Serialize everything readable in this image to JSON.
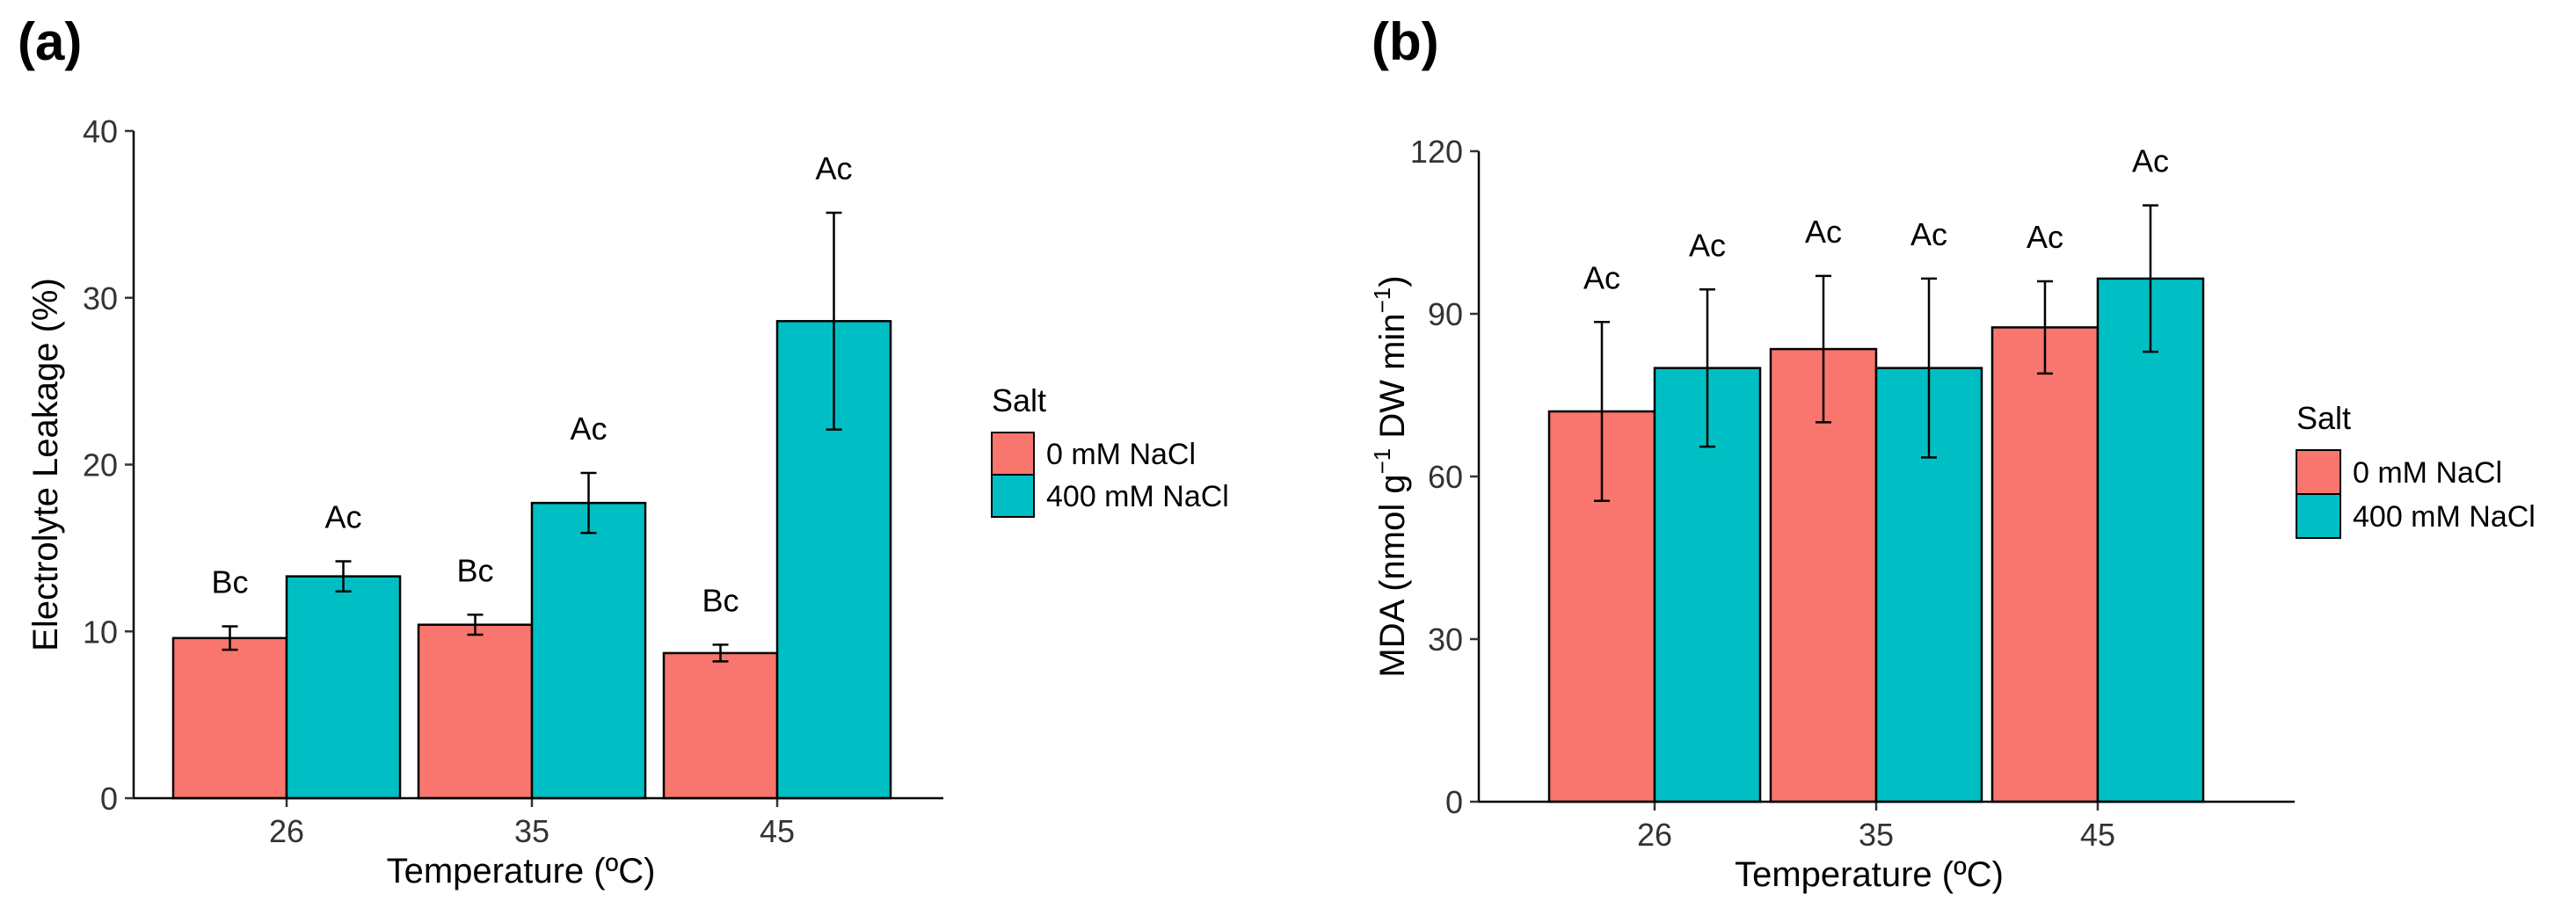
{
  "colors": {
    "salt_0": "#F8766D",
    "salt_400": "#00BFC4",
    "axis": "#000000",
    "bar_edge": "#000000"
  },
  "chart_data": [
    {
      "panel": "(a)",
      "type": "bar",
      "xlabel": "Temperature (ºC)",
      "ylabel": "Electrolyte Leakage (%)",
      "ylim": [
        0,
        40
      ],
      "yticks": [
        0,
        10,
        20,
        30,
        40
      ],
      "categories": [
        "26",
        "35",
        "45"
      ],
      "legend": {
        "title": "Salt",
        "position": "right"
      },
      "series": [
        {
          "name": "0 mM NaCl",
          "color": "#F8766D",
          "values": [
            9.6,
            10.4,
            8.7
          ],
          "errors": [
            0.7,
            0.6,
            0.5
          ],
          "labels": [
            "Bc",
            "Bc",
            "Bc"
          ]
        },
        {
          "name": "400 mM NaCl",
          "color": "#00BFC4",
          "values": [
            13.3,
            17.7,
            28.6
          ],
          "errors": [
            0.9,
            1.8,
            6.5
          ],
          "labels": [
            "Ac",
            "Ac",
            "Ac"
          ]
        }
      ]
    },
    {
      "panel": "(b)",
      "type": "bar",
      "xlabel": "Temperature (ºC)",
      "ylabel_parts": {
        "pre": "MDA (nmol g",
        "sup1": "−1",
        "mid": " DW min",
        "sup2": "−1",
        "post": ")"
      },
      "ylim": [
        0,
        120
      ],
      "yticks": [
        0,
        30,
        60,
        90,
        120
      ],
      "categories": [
        "26",
        "35",
        "45"
      ],
      "legend": {
        "title": "Salt",
        "position": "right"
      },
      "series": [
        {
          "name": "0 mM NaCl",
          "color": "#F8766D",
          "values": [
            72,
            83.5,
            87.5
          ],
          "errors": [
            16.5,
            13.5,
            8.5
          ],
          "labels": [
            "Ac",
            "Ac",
            "Ac"
          ]
        },
        {
          "name": "400 mM NaCl",
          "color": "#00BFC4",
          "values": [
            80,
            80,
            96.5
          ],
          "errors": [
            14.5,
            16.5,
            13.5
          ],
          "labels": [
            "Ac",
            "Ac",
            "Ac"
          ]
        }
      ]
    }
  ]
}
